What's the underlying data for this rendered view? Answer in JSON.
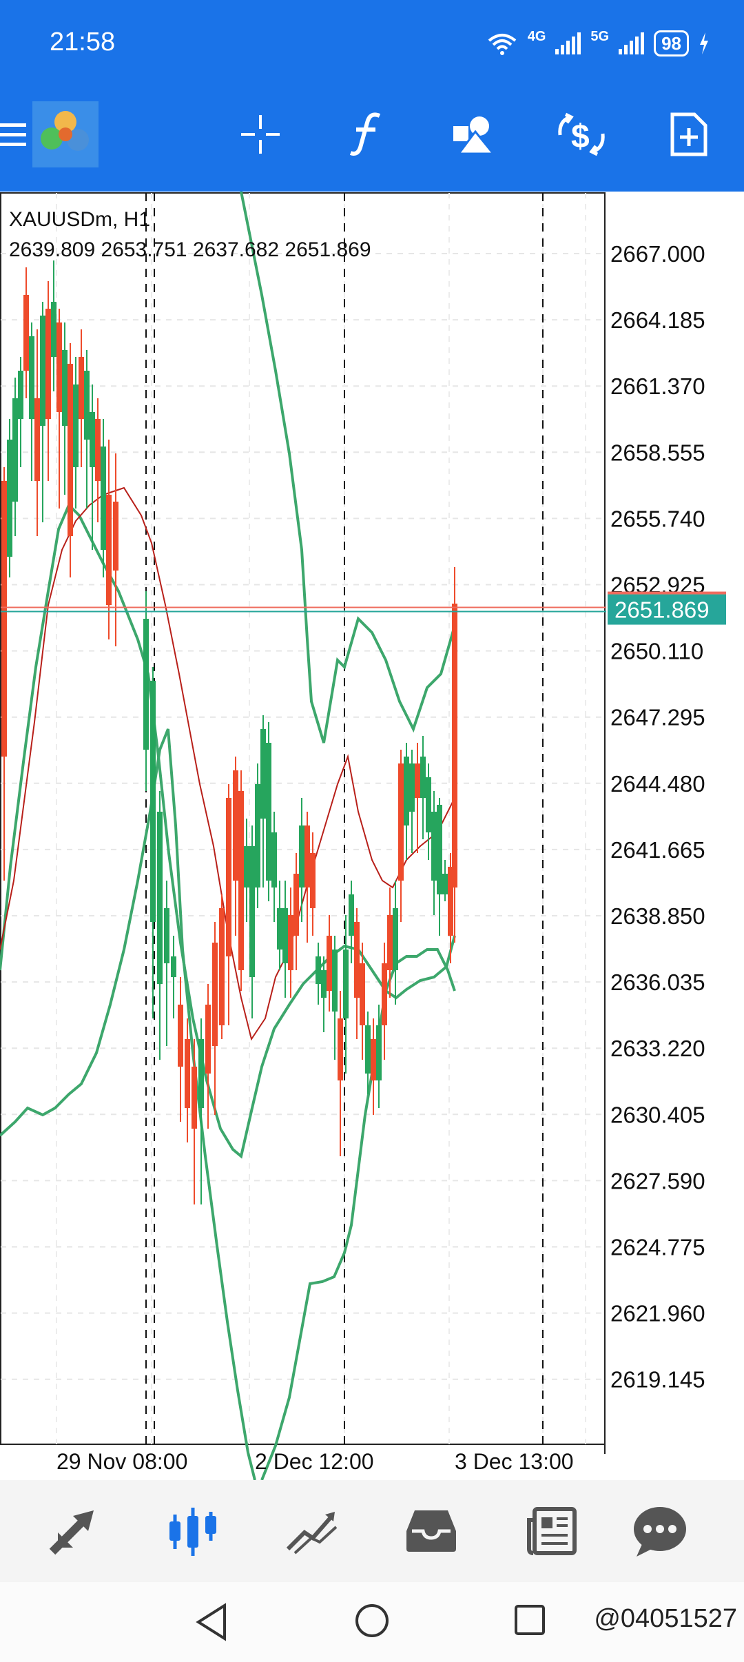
{
  "status_bar": {
    "time": "21:58",
    "network_1": "4G",
    "network_2": "5G",
    "battery": "98"
  },
  "toolbar": {
    "icons": [
      "menu-icon",
      "app-logo",
      "crosshair-icon",
      "indicators-icon",
      "objects-icon",
      "timeframe-icon",
      "new-order-icon"
    ]
  },
  "chart": {
    "symbol": "XAUUSDm, H1",
    "ohlc": "2639.809 2653.751 2637.682 2651.869",
    "current_price": "2651.869",
    "price_axis": [
      "2667.000",
      "2664.185",
      "2661.370",
      "2658.555",
      "2655.740",
      "2652.925",
      "2650.110",
      "2647.295",
      "2644.480",
      "2641.665",
      "2638.850",
      "2636.035",
      "2633.220",
      "2630.405",
      "2627.590",
      "2624.775",
      "2621.960",
      "2619.145"
    ],
    "time_axis": [
      "29 Nov 08:00",
      "2 Dec 12:00",
      "3 Dec 13:00"
    ],
    "colors": {
      "bull": "#26a55d",
      "bear": "#ee4b2b",
      "bands": "#3da76c",
      "ma": "#b8201a",
      "price_line": "#ef6c5e",
      "price_label_bg": "#26a69a"
    }
  },
  "bottom_nav": {
    "items": [
      "quotes",
      "chart",
      "trade",
      "history",
      "news",
      "messages"
    ],
    "active": "chart"
  },
  "watermark": "@04051527"
}
